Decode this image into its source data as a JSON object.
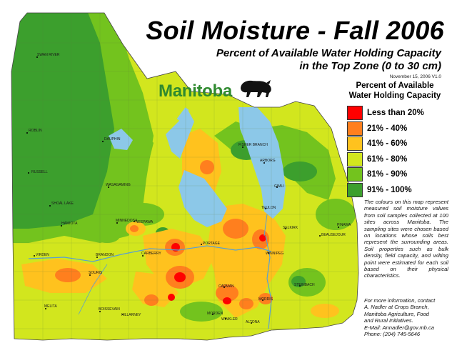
{
  "title": "Soil Moisture - Fall 2006",
  "subtitle_line1": "Percent of Available Water Holding Capacity",
  "subtitle_line2": "in the Top Zone (0 to 30 cm)",
  "date_version": "November 15, 2006   V1.0",
  "brand": "Manitoba",
  "legend": {
    "title_line1": "Percent of Available",
    "title_line2": "Water Holding Capacity",
    "items": [
      {
        "label": "Less than 20%",
        "color": "#ff0000"
      },
      {
        "label": "21% - 40%",
        "color": "#ff7f1e"
      },
      {
        "label": "41% - 60%",
        "color": "#ffc21e"
      },
      {
        "label": "61% - 80%",
        "color": "#d2e61e"
      },
      {
        "label": "81% - 90%",
        "color": "#73c31e"
      },
      {
        "label": "91% - 100%",
        "color": "#3c9f2d"
      }
    ]
  },
  "description": "The colours on this map represent measured soil moisture values from soil samples collected at 100 sites across Manitoba. The sampling sites were chosen based on locations whose soils best represent the surrounding areas. Soil properties such as bulk density, field capacity, and wilting point were estimated for each soil based on their physical characteristics.",
  "contact": {
    "line1": "For more information, contact",
    "line2": "A. Nadler at Crops Branch,",
    "line3": "Manitoba Agriculture, Food",
    "line4": "and Rural Initiatives.",
    "line5": "E-Mail: Annadler@gov.mb.ca",
    "line6": "Phone: (204) 745-5646"
  },
  "towns": {
    "swan_river": "SWAN RIVER",
    "roblin": "ROBLIN",
    "dauphin": "DAUPHIN",
    "russell": "RUSSELL",
    "wasagaming": "WASAGAMING",
    "shoal_lake": "SHOAL LAKE",
    "hamiota": "HAMIOTA",
    "minnedosa": "MINNEDOSA",
    "neepawa": "NEEPAWA",
    "virden": "VIRDEN",
    "brandon": "BRANDON",
    "carberry": "CARBERRY",
    "souris": "SOURIS",
    "melita": "MELITA",
    "boissevain": "BOISSEVAIN",
    "killarney": "KILLARNEY",
    "portage": "PORTAGE",
    "carman": "CARMAN",
    "morden": "MORDEN",
    "winkler": "WINKLER",
    "altona": "ALTONA",
    "morris": "MORRIS",
    "winnipeg": "WINNIPEG",
    "steinbach": "STEINBACH",
    "selkirk": "SELKIRK",
    "beausejour": "BEAUSEJOUR",
    "teulon": "TEULON",
    "gimli": "GIMLI",
    "arborg": "ARBORG",
    "fisher_branch": "FISHER BRANCH",
    "pinawa": "PINAWA"
  }
}
